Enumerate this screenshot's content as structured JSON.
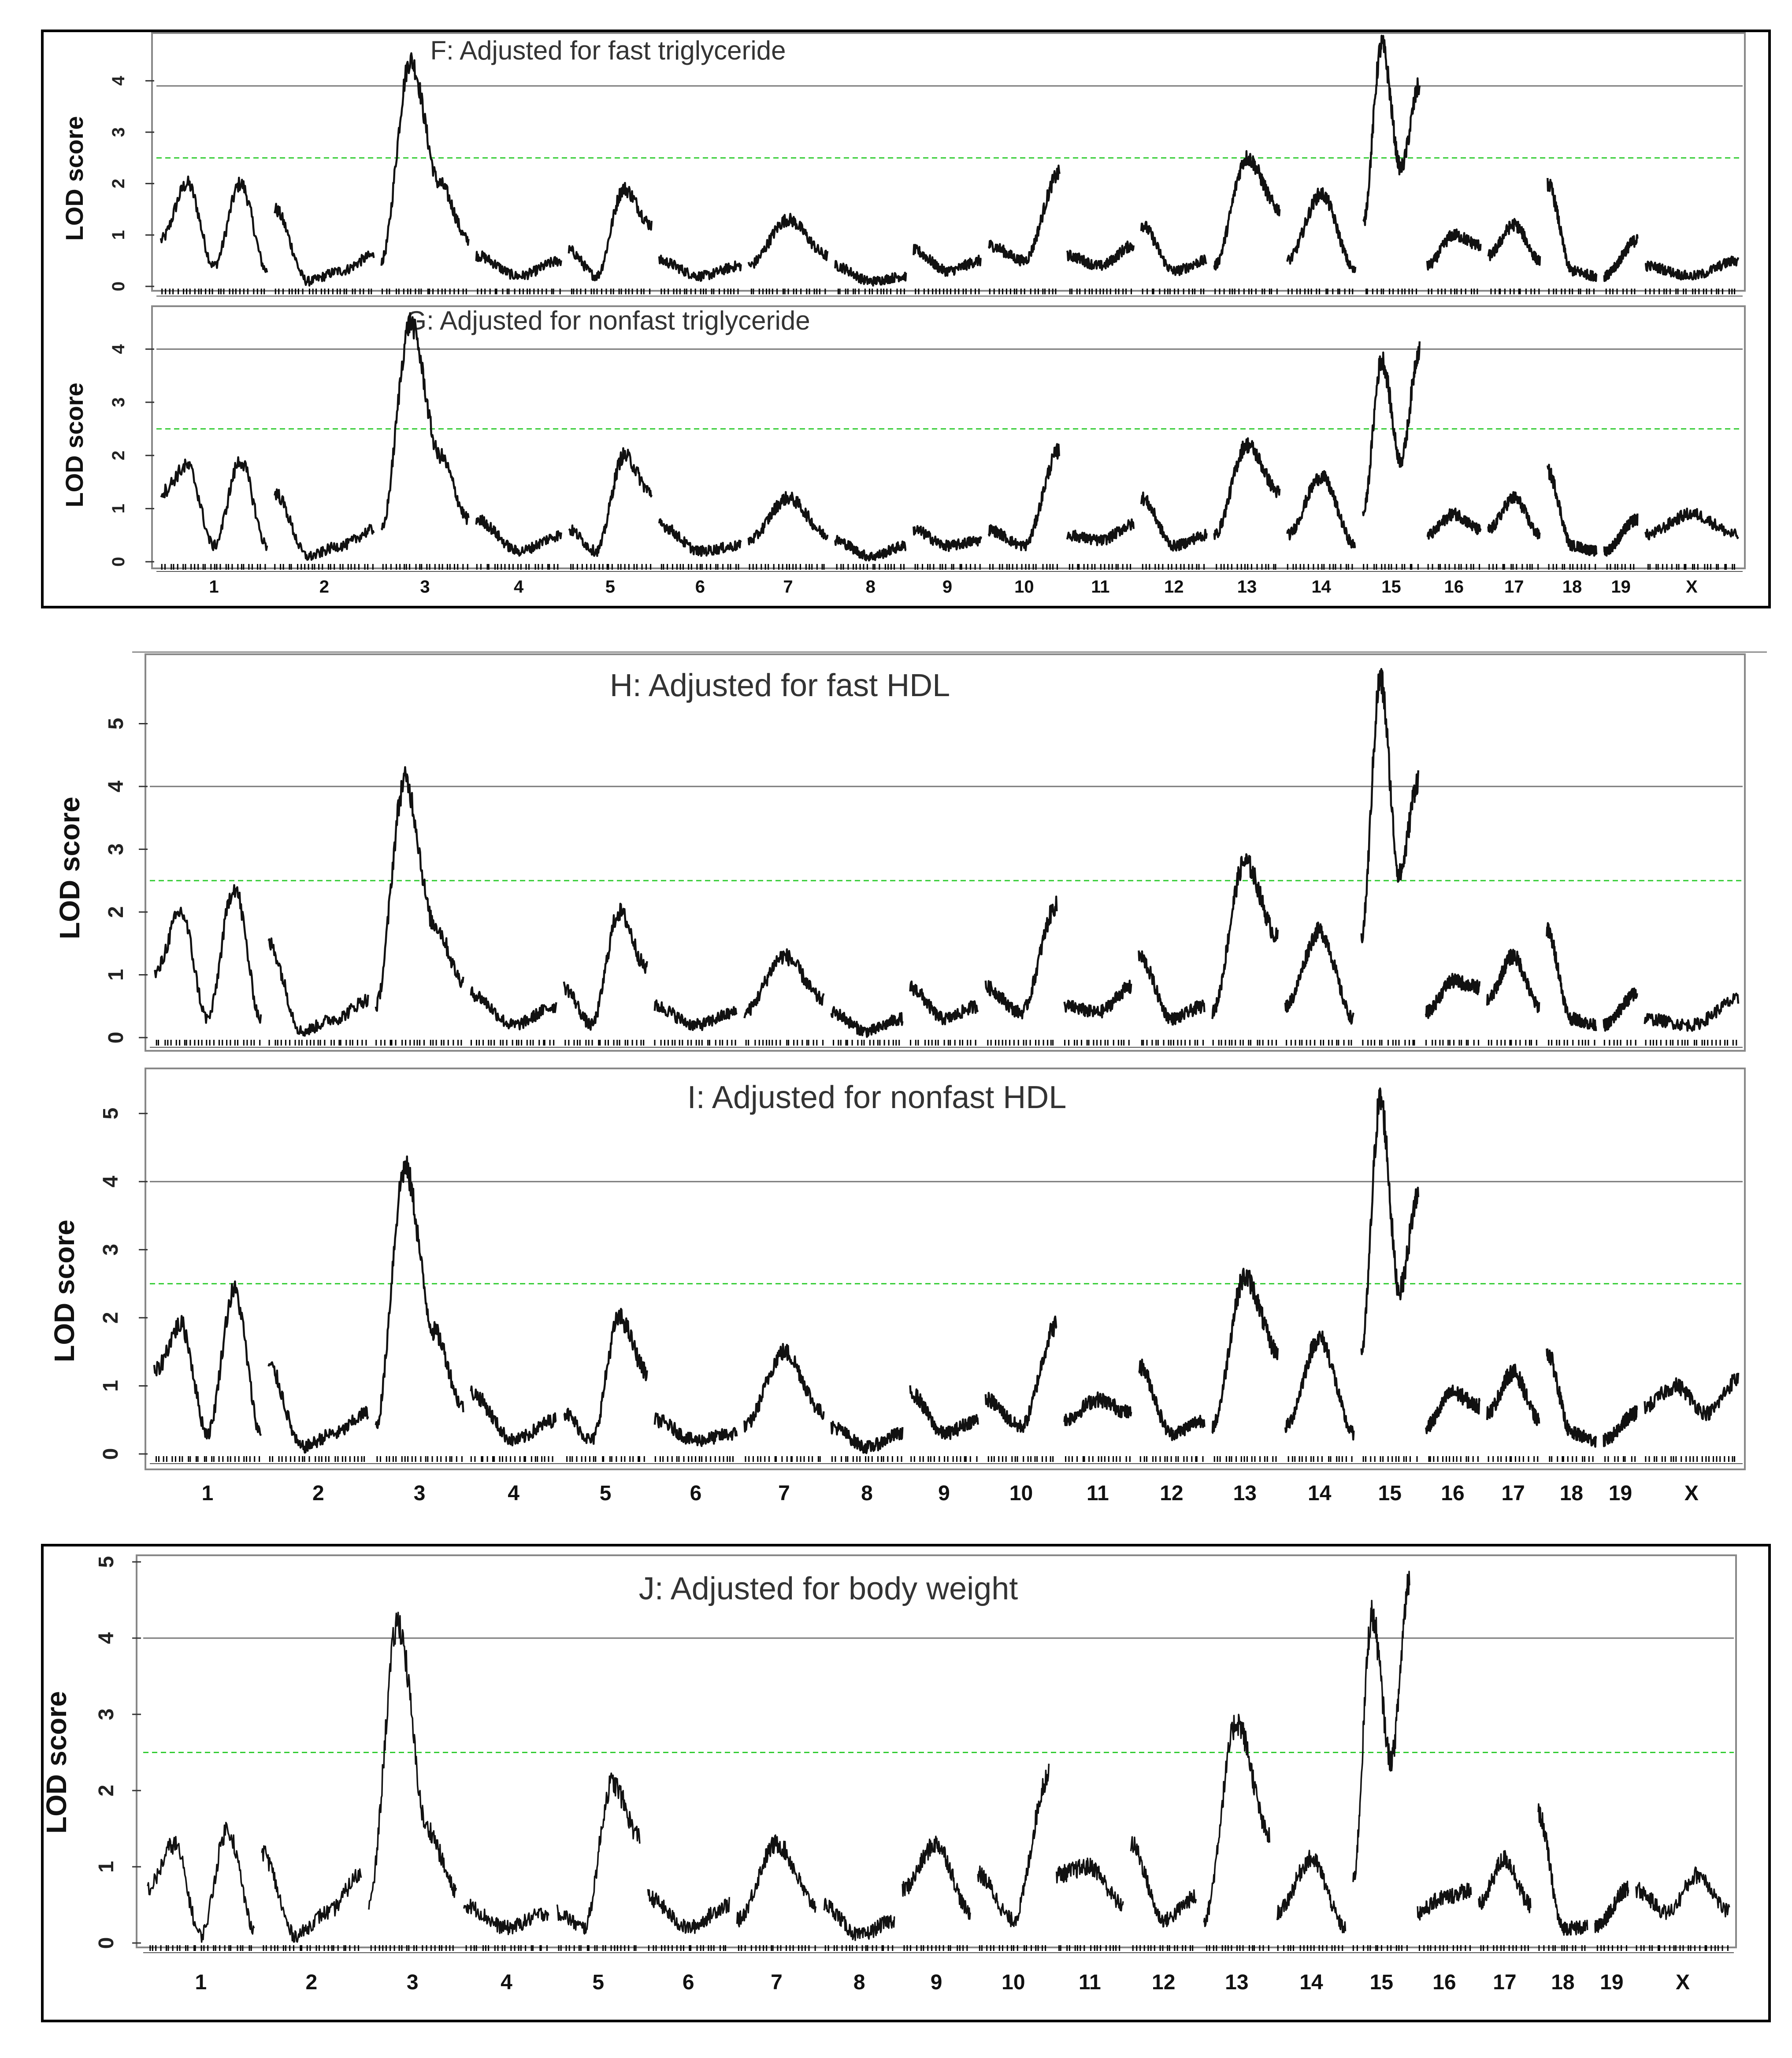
{
  "figure": {
    "chromosomes": [
      "1",
      "2",
      "3",
      "4",
      "5",
      "6",
      "7",
      "8",
      "9",
      "10",
      "11",
      "12",
      "13",
      "14",
      "15",
      "16",
      "17",
      "18",
      "19",
      "X"
    ],
    "thresholds": {
      "significant": 4.0,
      "suggestive": 2.5
    },
    "colors": {
      "trace": "#111111",
      "significant_line": "#777777",
      "suggestive_line": "#33cc33",
      "frame": "#000000",
      "panel_border": "#888888"
    }
  },
  "chart_data": [
    {
      "type": "line",
      "title": "F: Adjusted for fast triglyceride",
      "ylabel": "LOD score",
      "ylim": [
        0,
        4.8
      ],
      "yticks": [
        "0",
        "1",
        "2",
        "3",
        "4"
      ],
      "x_tick_labels": [],
      "thresholds": [
        3.9,
        2.5
      ],
      "peaks": [
        {
          "chr": "1",
          "base": 0.8,
          "values": [
            0.9,
            2.0,
            0.4,
            2.0,
            0.3
          ]
        },
        {
          "chr": "2",
          "base": 0.1,
          "values": [
            1.5,
            0.1,
            0.3,
            0.6
          ]
        },
        {
          "chr": "3",
          "base": 0.3,
          "values": [
            0.5,
            4.4,
            2.0,
            0.9
          ]
        },
        {
          "chr": "4",
          "base": 0.2,
          "values": [
            0.6,
            0.2,
            0.5
          ]
        },
        {
          "chr": "5",
          "base": 0.3,
          "values": [
            0.7,
            0.2,
            1.9,
            1.2
          ]
        },
        {
          "chr": "6",
          "base": 0.2,
          "values": [
            0.5,
            0.2,
            0.4
          ]
        },
        {
          "chr": "7",
          "base": 0.3,
          "values": [
            0.4,
            1.3,
            0.6
          ]
        },
        {
          "chr": "8",
          "base": 0.1,
          "values": [
            0.4,
            0.1,
            0.2
          ]
        },
        {
          "chr": "9",
          "base": 0.3,
          "values": [
            0.7,
            0.3,
            0.5
          ]
        },
        {
          "chr": "10",
          "base": 0.6,
          "values": [
            0.8,
            0.5,
            2.2
          ]
        },
        {
          "chr": "11",
          "base": 0.3,
          "values": [
            0.6,
            0.4,
            0.8
          ]
        },
        {
          "chr": "12",
          "base": 0.3,
          "values": [
            1.2,
            0.3,
            0.5
          ]
        },
        {
          "chr": "13",
          "base": 0.3,
          "values": [
            0.4,
            2.5,
            1.5
          ]
        },
        {
          "chr": "14",
          "base": 0.3,
          "values": [
            0.5,
            1.8,
            0.3
          ]
        },
        {
          "chr": "15",
          "base": 1.2,
          "values": [
            1.2,
            4.7,
            2.3,
            3.9
          ]
        },
        {
          "chr": "16",
          "base": 0.3,
          "values": [
            0.4,
            1.0,
            0.8
          ]
        },
        {
          "chr": "17",
          "base": 0.4,
          "values": [
            0.6,
            1.2,
            0.5
          ]
        },
        {
          "chr": "18",
          "base": 0.3,
          "values": [
            2.0,
            0.3,
            0.2
          ]
        },
        {
          "chr": "19",
          "base": 0.1,
          "values": [
            0.2,
            0.9
          ]
        },
        {
          "chr": "X",
          "base": 0.2,
          "values": [
            0.4,
            0.2,
            0.5
          ]
        }
      ]
    },
    {
      "type": "line",
      "title": "G: Adjusted for nonfast triglyceride",
      "ylabel": "LOD score",
      "ylim": [
        0,
        4.6
      ],
      "yticks": [
        "0",
        "1",
        "2",
        "3",
        "4"
      ],
      "x_tick_labels": [
        "1",
        "2",
        "3",
        "4",
        "5",
        "6",
        "7",
        "8",
        "9",
        "10",
        "11",
        "12",
        "13",
        "14",
        "15",
        "16",
        "17",
        "18",
        "19",
        "X"
      ],
      "thresholds": [
        4.0,
        2.5
      ],
      "peaks": [
        {
          "chr": "1",
          "base": 0.5,
          "values": [
            1.3,
            1.8,
            0.3,
            1.9,
            0.3
          ]
        },
        {
          "chr": "2",
          "base": 0.1,
          "values": [
            1.3,
            0.1,
            0.3,
            0.6
          ]
        },
        {
          "chr": "3",
          "base": 0.3,
          "values": [
            0.6,
            4.5,
            2.0,
            0.8
          ]
        },
        {
          "chr": "4",
          "base": 0.2,
          "values": [
            0.8,
            0.2,
            0.5
          ]
        },
        {
          "chr": "5",
          "base": 0.2,
          "values": [
            0.6,
            0.2,
            2.0,
            1.3
          ]
        },
        {
          "chr": "6",
          "base": 0.2,
          "values": [
            0.7,
            0.2,
            0.3
          ]
        },
        {
          "chr": "7",
          "base": 0.3,
          "values": [
            0.4,
            1.2,
            0.5
          ]
        },
        {
          "chr": "8",
          "base": 0.1,
          "values": [
            0.4,
            0.1,
            0.3
          ]
        },
        {
          "chr": "9",
          "base": 0.3,
          "values": [
            0.6,
            0.3,
            0.4
          ]
        },
        {
          "chr": "10",
          "base": 0.4,
          "values": [
            0.6,
            0.3,
            2.1
          ]
        },
        {
          "chr": "11",
          "base": 0.3,
          "values": [
            0.5,
            0.4,
            0.7
          ]
        },
        {
          "chr": "12",
          "base": 0.3,
          "values": [
            1.2,
            0.3,
            0.5
          ]
        },
        {
          "chr": "13",
          "base": 0.3,
          "values": [
            0.5,
            2.2,
            1.3
          ]
        },
        {
          "chr": "14",
          "base": 0.3,
          "values": [
            0.5,
            1.6,
            0.3
          ]
        },
        {
          "chr": "15",
          "base": 1.0,
          "values": [
            0.9,
            3.8,
            1.9,
            4.0
          ]
        },
        {
          "chr": "16",
          "base": 0.3,
          "values": [
            0.5,
            0.9,
            0.6
          ]
        },
        {
          "chr": "17",
          "base": 0.4,
          "values": [
            0.6,
            1.2,
            0.5
          ]
        },
        {
          "chr": "18",
          "base": 0.3,
          "values": [
            1.7,
            0.3,
            0.2
          ]
        },
        {
          "chr": "19",
          "base": 0.1,
          "values": [
            0.2,
            0.8
          ]
        },
        {
          "chr": "X",
          "base": 0.3,
          "values": [
            0.5,
            0.9,
            0.5
          ]
        }
      ]
    },
    {
      "type": "line",
      "title": "H: Adjusted for fast HDL",
      "ylabel": "LOD score",
      "ylim": [
        0,
        6
      ],
      "yticks": [
        "0",
        "1",
        "2",
        "3",
        "4",
        "5"
      ],
      "x_tick_labels": [],
      "thresholds": [
        4.0,
        2.5
      ],
      "peaks": [
        {
          "chr": "1",
          "base": 0.5,
          "values": [
            1.0,
            2.0,
            0.3,
            2.4,
            0.3
          ]
        },
        {
          "chr": "2",
          "base": 0.1,
          "values": [
            1.5,
            0.1,
            0.3,
            0.6
          ]
        },
        {
          "chr": "3",
          "base": 0.3,
          "values": [
            0.5,
            4.1,
            1.8,
            0.9
          ]
        },
        {
          "chr": "4",
          "base": 0.2,
          "values": [
            0.7,
            0.2,
            0.5
          ]
        },
        {
          "chr": "5",
          "base": 0.3,
          "values": [
            0.8,
            0.2,
            2.0,
            1.1
          ]
        },
        {
          "chr": "6",
          "base": 0.2,
          "values": [
            0.5,
            0.2,
            0.4
          ]
        },
        {
          "chr": "7",
          "base": 0.3,
          "values": [
            0.4,
            1.3,
            0.6
          ]
        },
        {
          "chr": "8",
          "base": 0.1,
          "values": [
            0.4,
            0.1,
            0.3
          ]
        },
        {
          "chr": "9",
          "base": 0.3,
          "values": [
            0.8,
            0.3,
            0.5
          ]
        },
        {
          "chr": "10",
          "base": 0.6,
          "values": [
            0.8,
            0.4,
            2.1
          ]
        },
        {
          "chr": "11",
          "base": 0.3,
          "values": [
            0.5,
            0.4,
            0.8
          ]
        },
        {
          "chr": "12",
          "base": 0.3,
          "values": [
            1.3,
            0.3,
            0.5
          ]
        },
        {
          "chr": "13",
          "base": 0.3,
          "values": [
            0.4,
            2.8,
            1.6
          ]
        },
        {
          "chr": "14",
          "base": 0.3,
          "values": [
            0.5,
            1.7,
            0.3
          ]
        },
        {
          "chr": "15",
          "base": 1.6,
          "values": [
            1.6,
            5.7,
            2.6,
            4.1
          ]
        },
        {
          "chr": "16",
          "base": 0.3,
          "values": [
            0.4,
            0.9,
            0.8
          ]
        },
        {
          "chr": "17",
          "base": 0.4,
          "values": [
            0.6,
            1.3,
            0.5
          ]
        },
        {
          "chr": "18",
          "base": 0.3,
          "values": [
            1.7,
            0.3,
            0.2
          ]
        },
        {
          "chr": "19",
          "base": 0.1,
          "values": [
            0.2,
            0.7
          ]
        },
        {
          "chr": "X",
          "base": 0.2,
          "values": [
            0.3,
            0.2,
            0.6
          ]
        }
      ]
    },
    {
      "type": "line",
      "title": "I: Adjusted for nonfast HDL",
      "ylabel": "LOD score",
      "ylim": [
        0,
        5.5
      ],
      "yticks": [
        "0",
        "1",
        "2",
        "3",
        "4",
        "5"
      ],
      "x_tick_labels": [
        "1",
        "2",
        "3",
        "4",
        "5",
        "6",
        "7",
        "8",
        "9",
        "10",
        "11",
        "12",
        "13",
        "14",
        "15",
        "16",
        "17",
        "18",
        "19",
        "X"
      ],
      "thresholds": [
        4.0,
        2.5
      ],
      "peaks": [
        {
          "chr": "1",
          "base": 0.5,
          "values": [
            1.2,
            1.9,
            0.3,
            2.4,
            0.3
          ]
        },
        {
          "chr": "2",
          "base": 0.1,
          "values": [
            1.3,
            0.1,
            0.3,
            0.6
          ]
        },
        {
          "chr": "3",
          "base": 0.3,
          "values": [
            0.4,
            4.2,
            1.8,
            0.7
          ]
        },
        {
          "chr": "4",
          "base": 0.2,
          "values": [
            0.9,
            0.2,
            0.5
          ]
        },
        {
          "chr": "5",
          "base": 0.2,
          "values": [
            0.6,
            0.2,
            2.0,
            1.2
          ]
        },
        {
          "chr": "6",
          "base": 0.2,
          "values": [
            0.5,
            0.2,
            0.3
          ]
        },
        {
          "chr": "7",
          "base": 0.3,
          "values": [
            0.4,
            1.5,
            0.6
          ]
        },
        {
          "chr": "8",
          "base": 0.1,
          "values": [
            0.4,
            0.1,
            0.3
          ]
        },
        {
          "chr": "9",
          "base": 0.3,
          "values": [
            0.9,
            0.3,
            0.5
          ]
        },
        {
          "chr": "10",
          "base": 0.6,
          "values": [
            0.8,
            0.4,
            1.9
          ]
        },
        {
          "chr": "11",
          "base": 0.3,
          "values": [
            0.5,
            0.8,
            0.6
          ]
        },
        {
          "chr": "12",
          "base": 0.3,
          "values": [
            1.3,
            0.3,
            0.5
          ]
        },
        {
          "chr": "13",
          "base": 0.3,
          "values": [
            0.4,
            2.6,
            1.5
          ]
        },
        {
          "chr": "14",
          "base": 0.3,
          "values": [
            0.4,
            1.7,
            0.3
          ]
        },
        {
          "chr": "15",
          "base": 1.5,
          "values": [
            1.5,
            5.2,
            2.4,
            3.8
          ]
        },
        {
          "chr": "16",
          "base": 0.3,
          "values": [
            0.4,
            0.9,
            0.7
          ]
        },
        {
          "chr": "17",
          "base": 0.4,
          "values": [
            0.6,
            1.2,
            0.5
          ]
        },
        {
          "chr": "18",
          "base": 0.3,
          "values": [
            1.5,
            0.3,
            0.2
          ]
        },
        {
          "chr": "19",
          "base": 0.1,
          "values": [
            0.2,
            0.6
          ]
        },
        {
          "chr": "X",
          "base": 0.5,
          "values": [
            0.7,
            1.0,
            0.6,
            1.1
          ]
        }
      ]
    },
    {
      "type": "line",
      "title": "J: Adjusted for body weight",
      "ylabel": "LOD score",
      "ylim": [
        0,
        5
      ],
      "yticks": [
        "0",
        "1",
        "2",
        "3",
        "4",
        "5"
      ],
      "x_tick_labels": [
        "1",
        "2",
        "3",
        "4",
        "5",
        "6",
        "7",
        "8",
        "9",
        "10",
        "11",
        "12",
        "13",
        "14",
        "15",
        "16",
        "17",
        "18",
        "19",
        "X"
      ],
      "thresholds": [
        4.0,
        2.5
      ],
      "peaks": [
        {
          "chr": "1",
          "base": 0.3,
          "values": [
            0.7,
            1.3,
            0.1,
            1.5,
            0.2
          ]
        },
        {
          "chr": "2",
          "base": 0.1,
          "values": [
            1.2,
            0.1,
            0.4,
            0.9
          ]
        },
        {
          "chr": "3",
          "base": 0.3,
          "values": [
            0.5,
            4.2,
            1.5,
            0.7
          ]
        },
        {
          "chr": "4",
          "base": 0.2,
          "values": [
            0.5,
            0.2,
            0.4
          ]
        },
        {
          "chr": "5",
          "base": 0.2,
          "values": [
            0.4,
            0.2,
            2.1,
            1.4
          ]
        },
        {
          "chr": "6",
          "base": 0.2,
          "values": [
            0.6,
            0.2,
            0.5
          ]
        },
        {
          "chr": "7",
          "base": 0.2,
          "values": [
            0.3,
            1.3,
            0.5
          ]
        },
        {
          "chr": "8",
          "base": 0.1,
          "values": [
            0.5,
            0.1,
            0.3
          ]
        },
        {
          "chr": "9",
          "base": 0.3,
          "values": [
            0.7,
            1.3,
            0.4
          ]
        },
        {
          "chr": "10",
          "base": 0.5,
          "values": [
            0.9,
            0.3,
            2.2
          ]
        },
        {
          "chr": "11",
          "base": 0.4,
          "values": [
            0.9,
            1.0,
            0.5
          ]
        },
        {
          "chr": "12",
          "base": 0.3,
          "values": [
            1.3,
            0.3,
            0.6
          ]
        },
        {
          "chr": "13",
          "base": 0.3,
          "values": [
            0.3,
            2.9,
            1.4
          ]
        },
        {
          "chr": "14",
          "base": 0.3,
          "values": [
            0.4,
            1.1,
            0.2
          ]
        },
        {
          "chr": "15",
          "base": 0.9,
          "values": [
            0.8,
            4.3,
            2.4,
            4.8
          ]
        },
        {
          "chr": "16",
          "base": 0.3,
          "values": [
            0.4,
            0.6,
            0.7
          ]
        },
        {
          "chr": "17",
          "base": 0.4,
          "values": [
            0.5,
            1.1,
            0.5
          ]
        },
        {
          "chr": "18",
          "base": 0.3,
          "values": [
            1.7,
            0.2,
            0.2
          ]
        },
        {
          "chr": "19",
          "base": 0.1,
          "values": [
            0.2,
            0.7
          ]
        },
        {
          "chr": "X",
          "base": 0.3,
          "values": [
            0.7,
            0.4,
            0.9,
            0.4
          ]
        }
      ]
    }
  ]
}
